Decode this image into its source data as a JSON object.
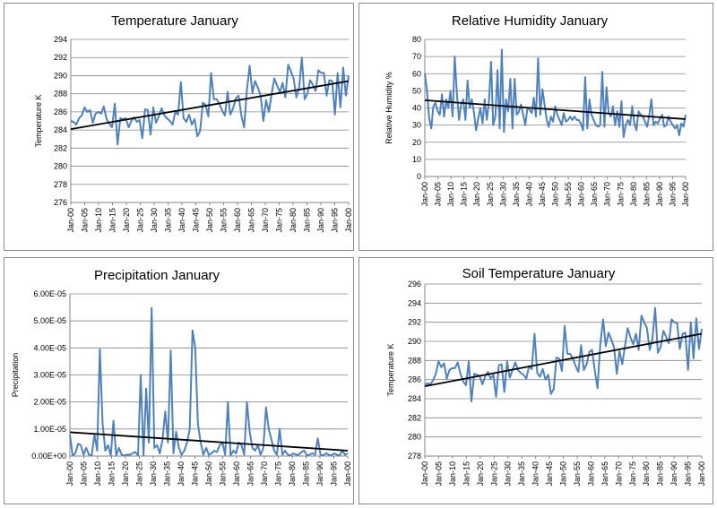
{
  "colors": {
    "series": "#4f81bd",
    "trend": "#000000",
    "grid": "#868686",
    "border": "#8c8c8c"
  },
  "x_tick_labels": [
    "Jan-00",
    "Jan-05",
    "Jan-10",
    "Jan-15",
    "Jan-20",
    "Jan-25",
    "Jan-30",
    "Jan-35",
    "Jan-40",
    "Jan-45",
    "Jan-50",
    "Jan-55",
    "Jan-60",
    "Jan-65",
    "Jan-70",
    "Jan-75",
    "Jan-80",
    "Jan-85",
    "Jan-90",
    "Jan-95",
    "Jan-00"
  ],
  "chart_data": [
    {
      "id": "temperature",
      "type": "line",
      "title": "Temperature January",
      "ylabel": "Temperature K",
      "ylim": [
        276,
        294
      ],
      "ystep": 2,
      "ytick_labels": [
        "276",
        "278",
        "280",
        "282",
        "284",
        "286",
        "288",
        "290",
        "292",
        "294"
      ],
      "grid": true,
      "trendline": [
        284.1,
        289.4
      ],
      "series": [
        {
          "values": [
            285.0,
            284.9,
            284.6,
            285.3,
            285.6,
            286.5,
            286.0,
            286.2,
            284.8,
            285.8,
            286.0,
            285.8,
            286.6,
            285.2,
            284.7,
            284.3,
            286.9,
            282.4,
            285.3,
            285.2,
            285.3,
            284.3,
            285.0,
            285.4,
            284.9,
            285.1,
            283.1,
            286.3,
            286.2,
            283.5,
            286.5,
            284.8,
            285.5,
            286.4,
            285.6,
            285.3,
            285.0,
            284.6,
            286.0,
            285.7,
            289.3,
            285.3,
            284.9,
            285.7,
            284.6,
            285.2,
            283.3,
            283.9,
            287.0,
            286.8,
            285.5,
            290.3,
            287.4,
            287.4,
            286.9,
            286.2,
            285.6,
            288.2,
            285.7,
            286.4,
            287.5,
            287.8,
            285.6,
            284.3,
            288.3,
            291.1,
            288.1,
            289.4,
            288.7,
            287.8,
            285.0,
            287.3,
            286.0,
            288.0,
            289.7,
            288.9,
            288.2,
            289.2,
            287.6,
            291.2,
            290.5,
            289.7,
            287.6,
            288.7,
            292.0,
            287.4,
            288.0,
            289.5,
            289.0,
            288.3,
            290.6,
            290.3,
            290.3,
            287.8,
            289.5,
            289.4,
            285.7,
            290.3,
            286.5,
            290.9,
            287.8,
            290.0
          ]
        }
      ]
    },
    {
      "id": "humidity",
      "type": "line",
      "title": "Relative Humidity January",
      "ylabel": "Relative Humidity %",
      "ylim": [
        0,
        80
      ],
      "ystep": 10,
      "ytick_labels": [
        "0",
        "10",
        "20",
        "30",
        "40",
        "50",
        "60",
        "70",
        "80"
      ],
      "grid": true,
      "trendline": [
        44.5,
        33.5
      ],
      "series": [
        {
          "values": [
            60,
            50,
            34,
            28,
            41,
            43,
            38,
            36,
            48,
            35,
            45,
            40,
            50,
            35,
            70,
            48,
            33,
            42,
            45,
            33,
            56,
            40,
            45,
            37,
            27,
            34,
            40,
            31,
            45,
            33,
            44,
            67,
            30,
            35,
            62,
            28,
            74,
            26,
            45,
            38,
            57,
            28,
            57,
            36,
            38,
            42,
            36,
            30,
            40,
            39,
            37,
            46,
            35,
            69,
            36,
            51,
            42,
            33,
            29,
            35,
            32,
            41,
            36,
            33,
            30,
            37,
            32,
            33,
            35,
            33,
            35,
            33,
            33,
            31,
            27,
            58,
            28,
            45,
            36,
            33,
            30,
            29,
            30,
            61,
            29,
            52,
            37,
            35,
            41,
            30,
            38,
            29,
            44,
            23,
            30,
            33,
            30,
            41,
            31,
            27,
            38,
            36,
            35,
            32,
            29,
            36,
            45,
            30,
            32,
            31,
            34,
            36,
            29,
            30,
            35,
            32,
            30,
            28,
            30,
            24,
            31,
            29,
            36
          ]
        }
      ]
    },
    {
      "id": "precipitation",
      "type": "line",
      "title": "Precipitation January",
      "ylabel": "Precipitation",
      "ylim": [
        0,
        6e-05
      ],
      "ystep": 1e-05,
      "ytick_labels": [
        "0.00E+00",
        "1.00E-05",
        "2.00E-05",
        "3.00E-05",
        "4.00E-05",
        "5.00E-05",
        "6.00E-05"
      ],
      "grid": true,
      "trendline": [
        8.8e-06,
        2e-06
      ],
      "series": [
        {
          "values": [
            8e-06,
            2e-07,
            1e-06,
            4.5e-06,
            4e-06,
            5e-07,
            3e-06,
            5e-07,
            2e-07,
            8e-06,
            2e-06,
            3.95e-05,
            1.2e-05,
            2e-06,
            4e-06,
            2e-07,
            1.3e-05,
            2e-07,
            3e-06,
            5e-07,
            2e-07,
            5e-07,
            5e-07,
            1e-06,
            1.5e-06,
            2e-07,
            3e-05,
            2e-07,
            2.5e-05,
            5e-06,
            5.48e-05,
            3e-06,
            4e-06,
            1e-06,
            6e-06,
            1.65e-05,
            5e-06,
            3.9e-05,
            1e-06,
            9e-06,
            3e-06,
            5e-07,
            2e-06,
            5e-06,
            1e-05,
            4.65e-05,
            4e-05,
            1.2e-05,
            5e-06,
            5e-07,
            3e-06,
            5e-07,
            1e-06,
            2e-06,
            1.5e-06,
            4e-06,
            5e-06,
            5e-07,
            2e-05,
            2e-07,
            2e-06,
            1e-06,
            5e-06,
            4e-06,
            5e-07,
            2e-05,
            9e-06,
            3e-06,
            2e-06,
            4e-06,
            5e-07,
            3e-06,
            1.8e-05,
            1e-05,
            6e-06,
            2e-06,
            5e-07,
            1e-05,
            5e-07,
            2e-06,
            5e-07,
            2e-07,
            1e-06,
            5e-07,
            5e-07,
            1.5e-06,
            2e-06,
            2e-07,
            5e-07,
            1e-06,
            5e-07,
            6.5e-06,
            5e-07,
            2e-07,
            1e-06,
            5e-07,
            2e-07,
            1e-06,
            5e-07,
            2e-07,
            2e-06,
            5e-07,
            1e-06
          ]
        }
      ]
    },
    {
      "id": "soil",
      "type": "line",
      "title": "Soil Temperature January",
      "ylabel": "Temperature K",
      "ylim": [
        278,
        296
      ],
      "ystep": 2,
      "ytick_labels": [
        "278",
        "280",
        "282",
        "284",
        "286",
        "288",
        "290",
        "292",
        "294",
        "296"
      ],
      "grid": true,
      "trendline": [
        285.3,
        290.8
      ],
      "series": [
        {
          "values": [
            285.5,
            285.6,
            285.5,
            285.9,
            286.6,
            287.9,
            287.3,
            287.7,
            286.1,
            287.0,
            287.2,
            287.2,
            287.8,
            286.6,
            285.8,
            285.4,
            287.9,
            283.7,
            286.6,
            286.5,
            286.4,
            285.5,
            286.3,
            286.8,
            286.1,
            286.5,
            284.2,
            287.5,
            287.6,
            284.7,
            287.9,
            286.2,
            287.0,
            287.8,
            287.0,
            286.7,
            286.5,
            286.1,
            287.4,
            287.1,
            290.8,
            286.7,
            286.3,
            287.1,
            286.0,
            286.5,
            284.5,
            285.0,
            288.3,
            288.2,
            286.9,
            291.6,
            288.7,
            288.7,
            288.2,
            287.4,
            286.8,
            289.6,
            287.0,
            287.6,
            288.9,
            289.1,
            286.9,
            285.1,
            289.7,
            292.3,
            289.5,
            290.9,
            290.2,
            289.4,
            286.6,
            289.0,
            287.6,
            289.5,
            291.4,
            290.4,
            289.7,
            290.8,
            289.1,
            292.7,
            292.0,
            291.4,
            289.1,
            290.2,
            293.5,
            288.8,
            289.4,
            291.1,
            290.5,
            289.8,
            292.3,
            292.0,
            291.9,
            289.2,
            290.8,
            290.9,
            287.0,
            292.0,
            288.2,
            292.4,
            289.2,
            291.3
          ]
        }
      ]
    }
  ]
}
